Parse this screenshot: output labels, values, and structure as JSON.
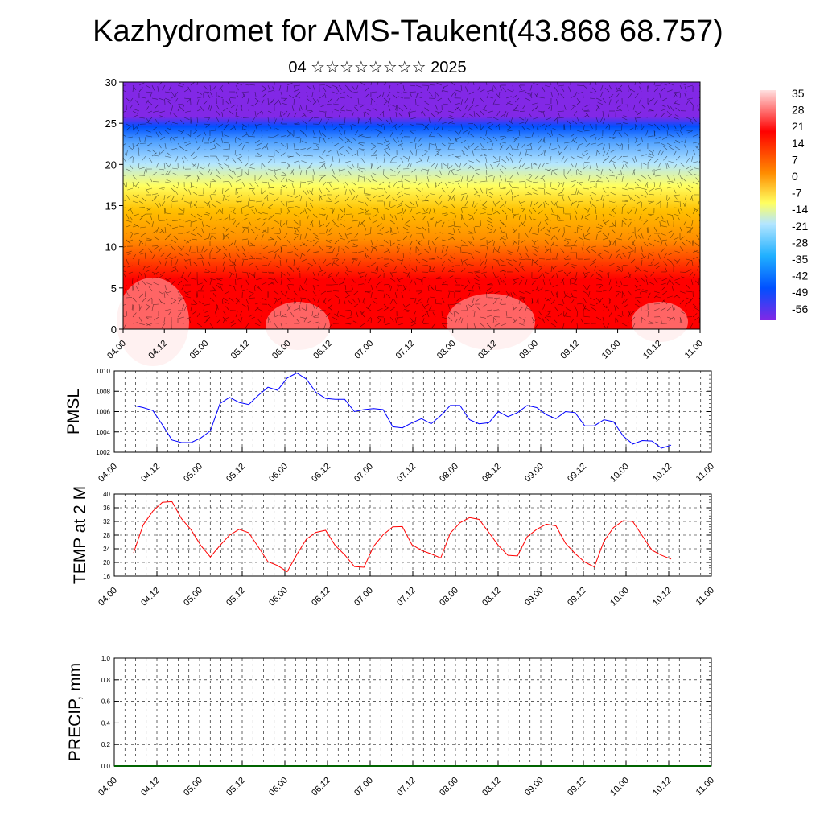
{
  "header": {
    "title": "Kazhydromet for AMS-Taukent(43.868 68.757)",
    "subtitle": "04 ☆☆☆☆☆☆☆☆ 2025"
  },
  "time_labels": [
    "04.00",
    "04.12",
    "05.00",
    "05.12",
    "06.00",
    "06.12",
    "07.00",
    "07.12",
    "08.00",
    "08.12",
    "09.00",
    "09.12",
    "10.00",
    "10.12",
    "11.00"
  ],
  "chart_data": [
    {
      "type": "heatmap",
      "title": "Kazhydromet for AMS-Taukent(43.868 68.757)",
      "subtitle": "04 ☆☆☆☆☆☆☆☆ 2025",
      "x_ticks": [
        "04.00",
        "04.12",
        "05.00",
        "05.12",
        "06.00",
        "06.12",
        "07.00",
        "07.12",
        "08.00",
        "08.12",
        "09.00",
        "09.12",
        "10.00",
        "10.12",
        "11.00"
      ],
      "y_ticks": [
        0,
        5,
        10,
        15,
        20,
        25,
        30
      ],
      "ylim": [
        0,
        30
      ],
      "colorbar_labels": [
        "35",
        "28",
        "21",
        "14",
        "7",
        "0",
        "-7",
        "-14",
        "-21",
        "-28",
        "-35",
        "-42",
        "-49",
        "-56"
      ],
      "colors": {
        "warm_max": "#ffe0e0",
        "hot": "#ff0000",
        "warm": "#ff8c00",
        "neutral": "#ffff60",
        "cool": "#b4e6ff",
        "cold": "#0050ff",
        "coldest": "#8228e6"
      },
      "temperature_profile": [
        {
          "level": 0,
          "value": 25
        },
        {
          "level": 5,
          "value": 20
        },
        {
          "level": 10,
          "value": 15
        },
        {
          "level": 15,
          "value": -12
        },
        {
          "level": 20,
          "value": -30
        },
        {
          "level": 25,
          "value": -50
        },
        {
          "level": 30,
          "value": -58
        }
      ],
      "overlay": "wind barbs"
    },
    {
      "type": "line",
      "ylabel": "PMSL",
      "x": [
        "04.00",
        "04.03",
        "04.06",
        "04.09",
        "04.12",
        "04.15",
        "04.18",
        "04.21",
        "05.00",
        "05.03",
        "05.06",
        "05.09",
        "05.12",
        "05.15",
        "05.18",
        "05.21",
        "06.00",
        "06.03",
        "06.06",
        "06.09",
        "06.12",
        "06.15",
        "06.18",
        "06.21",
        "07.00",
        "07.03",
        "07.06",
        "07.09",
        "07.12",
        "07.15",
        "07.18",
        "07.21",
        "08.00",
        "08.03",
        "08.06",
        "08.09",
        "08.12",
        "08.15",
        "08.18",
        "08.21",
        "09.00",
        "09.03",
        "09.06",
        "09.09",
        "09.12",
        "09.15",
        "09.18",
        "09.21",
        "10.00",
        "10.03",
        "10.06",
        "10.09",
        "10.12",
        "10.15",
        "10.18",
        "10.21",
        "11.00"
      ],
      "series": [
        {
          "color": "#0000ff",
          "values": [
            1006.6,
            1006.4,
            1006.1,
            1004.7,
            1003.2,
            1002.95,
            1002.95,
            1003.4,
            1004.1,
            1006.8,
            1007.4,
            1006.9,
            1006.7,
            1007.6,
            1008.4,
            1008.1,
            1009.3,
            1009.8,
            1009.2,
            1007.9,
            1007.3,
            1007.2,
            1007.2,
            1006.0,
            1006.2,
            1006.3,
            1006.2,
            1004.5,
            1004.4,
            1004.9,
            1005.3,
            1004.8,
            1005.6,
            1006.6,
            1006.6,
            1005.2,
            1004.8,
            1004.9,
            1006.0,
            1005.5,
            1005.9,
            1006.6,
            1006.4,
            1005.7,
            1005.3,
            1006.0,
            1005.9,
            1004.6,
            1004.6,
            1005.2,
            1005.0,
            1003.6,
            1002.8,
            1003.15,
            1003.1,
            1002.4,
            1002.7
          ]
        }
      ],
      "ylim": [
        1002,
        1010
      ],
      "y_ticks": [
        "1002",
        "1004",
        "1006",
        "1008",
        "1010"
      ],
      "grid": true
    },
    {
      "type": "line",
      "ylabel": "TEMP at 2 M",
      "x": [
        "04.00",
        "04.03",
        "04.06",
        "04.09",
        "04.12",
        "04.15",
        "04.18",
        "04.21",
        "05.00",
        "05.03",
        "05.06",
        "05.09",
        "05.12",
        "05.15",
        "05.18",
        "05.21",
        "06.00",
        "06.03",
        "06.06",
        "06.09",
        "06.12",
        "06.15",
        "06.18",
        "06.21",
        "07.00",
        "07.03",
        "07.06",
        "07.09",
        "07.12",
        "07.15",
        "07.18",
        "07.21",
        "08.00",
        "08.03",
        "08.06",
        "08.09",
        "08.12",
        "08.15",
        "08.18",
        "08.21",
        "09.00",
        "09.03",
        "09.06",
        "09.09",
        "09.12",
        "09.15",
        "09.18",
        "09.21",
        "10.00",
        "10.03",
        "10.06",
        "10.09",
        "10.12",
        "10.15",
        "10.18",
        "10.21",
        "11.00"
      ],
      "series": [
        {
          "color": "#ff0000",
          "values": [
            22.8,
            31.0,
            35.0,
            37.6,
            37.8,
            32.8,
            29.5,
            25.0,
            21.6,
            25.0,
            28.0,
            29.7,
            28.7,
            24.5,
            20.2,
            19.1,
            17.3,
            22.3,
            26.8,
            28.8,
            29.4,
            25.0,
            22.2,
            18.8,
            18.6,
            24.7,
            28.1,
            30.4,
            30.5,
            25.2,
            23.5,
            22.5,
            21.3,
            28.6,
            31.6,
            33.1,
            32.6,
            28.8,
            25.0,
            22.1,
            21.9,
            27.5,
            29.7,
            31.2,
            30.7,
            25.6,
            22.6,
            20.1,
            18.7,
            26.2,
            30.2,
            32.2,
            32.0,
            27.8,
            23.6,
            22.1,
            21.0
          ]
        }
      ],
      "ylim": [
        16,
        40
      ],
      "y_ticks": [
        "16",
        "20",
        "24",
        "28",
        "32",
        "36",
        "40"
      ],
      "grid": true
    },
    {
      "type": "line",
      "ylabel": "PRECIP, mm",
      "series": [
        {
          "color": "#006400",
          "values": [
            0,
            0,
            0,
            0,
            0,
            0,
            0,
            0,
            0,
            0,
            0,
            0,
            0,
            0,
            0,
            0,
            0,
            0,
            0,
            0,
            0,
            0,
            0,
            0,
            0,
            0,
            0,
            0,
            0,
            0,
            0,
            0,
            0,
            0,
            0,
            0,
            0,
            0,
            0,
            0,
            0,
            0,
            0,
            0,
            0,
            0,
            0,
            0,
            0,
            0,
            0,
            0,
            0,
            0,
            0,
            0,
            0
          ]
        }
      ],
      "ylim": [
        0,
        1
      ],
      "y_ticks": [
        "0.0",
        "0.2",
        "0.4",
        "0.6",
        "0.8",
        "1.0"
      ],
      "grid": true
    }
  ]
}
